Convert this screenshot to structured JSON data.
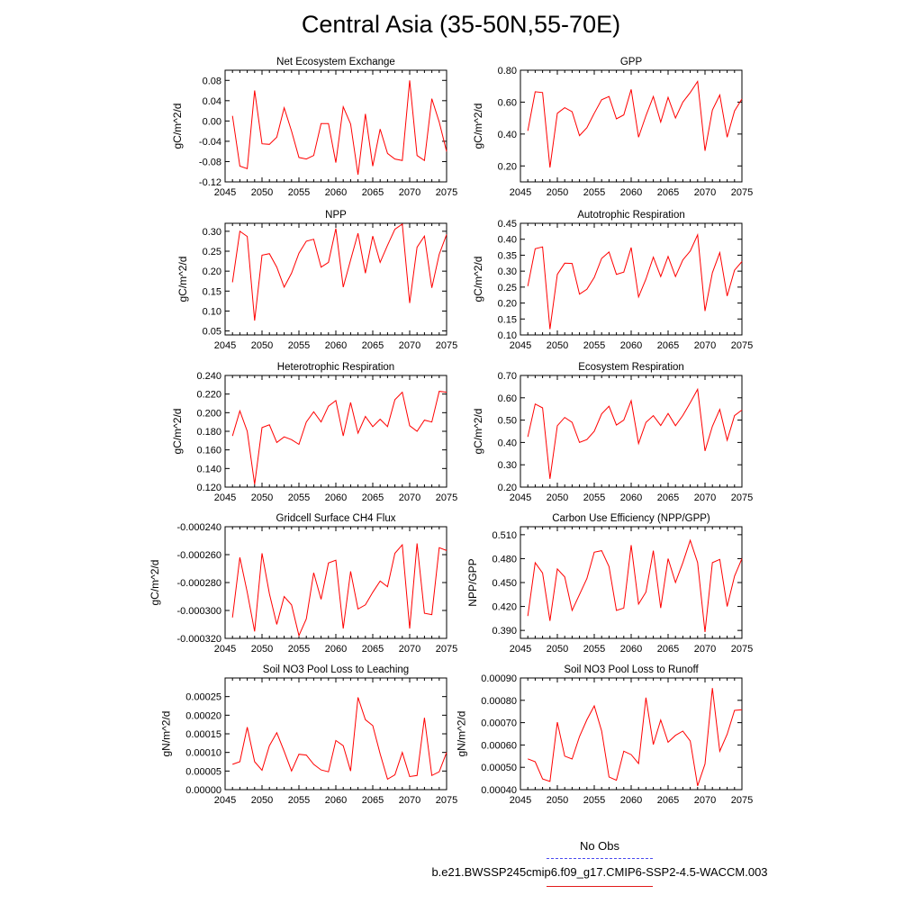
{
  "title": "Central Asia (35-50N,55-70E)",
  "series_color": "#ff0000",
  "obs_color": "#4a4af0",
  "legend": {
    "obs_label": "No Obs",
    "case_label": "b.e21.BWSSP245cmip6.f09_g17.CMIP6-SSP2-4.5-WACCM.003"
  },
  "chart_data": [
    {
      "type": "line",
      "title": "Net Ecosystem Exchange",
      "ylabel": "gC/m^2/d",
      "xlabel": "",
      "xlim": [
        2045,
        2075
      ],
      "ylim": [
        -0.12,
        0.1
      ],
      "xticks": [
        2045,
        2050,
        2055,
        2060,
        2065,
        2070,
        2075
      ],
      "xtick_labels": [
        "2045",
        "2050",
        "2055",
        "2060",
        "2065",
        "2070",
        "2075"
      ],
      "yticks": [
        -0.12,
        -0.08,
        -0.04,
        0.0,
        0.04,
        0.08
      ],
      "ytick_labels": [
        "-0.12",
        "-0.08",
        "-0.04",
        "0.00",
        "0.04",
        "0.08"
      ],
      "x": [
        2046,
        2047,
        2048,
        2049,
        2050,
        2051,
        2052,
        2053,
        2054,
        2055,
        2056,
        2057,
        2058,
        2059,
        2060,
        2061,
        2062,
        2063,
        2064,
        2065,
        2066,
        2067,
        2068,
        2069,
        2070,
        2071,
        2072,
        2073,
        2074,
        2075
      ],
      "series": [
        {
          "values": [
            0.01,
            -0.089,
            -0.094,
            0.06,
            -0.045,
            -0.046,
            -0.032,
            0.026,
            -0.02,
            -0.072,
            -0.075,
            -0.068,
            -0.005,
            -0.005,
            -0.082,
            0.028,
            -0.006,
            -0.106,
            0.014,
            -0.089,
            -0.016,
            -0.064,
            -0.075,
            -0.078,
            0.08,
            -0.068,
            -0.078,
            0.044,
            -0.002,
            -0.06
          ]
        }
      ]
    },
    {
      "type": "line",
      "title": "GPP",
      "ylabel": "gC/m^2/d",
      "xlabel": "",
      "xlim": [
        2045,
        2075
      ],
      "ylim": [
        0.1,
        0.8
      ],
      "xticks": [
        2045,
        2050,
        2055,
        2060,
        2065,
        2070,
        2075
      ],
      "xtick_labels": [
        "2045",
        "2050",
        "2055",
        "2060",
        "2065",
        "2070",
        "2075"
      ],
      "yticks": [
        0.2,
        0.4,
        0.6,
        0.8
      ],
      "ytick_labels": [
        "0.20",
        "0.40",
        "0.60",
        "0.80"
      ],
      "x": [
        2046,
        2047,
        2048,
        2049,
        2050,
        2051,
        2052,
        2053,
        2054,
        2055,
        2056,
        2057,
        2058,
        2059,
        2060,
        2061,
        2062,
        2063,
        2064,
        2065,
        2066,
        2067,
        2068,
        2069,
        2070,
        2071,
        2072,
        2073,
        2074,
        2075
      ],
      "series": [
        {
          "values": [
            0.42,
            0.665,
            0.66,
            0.19,
            0.53,
            0.565,
            0.54,
            0.39,
            0.44,
            0.53,
            0.615,
            0.635,
            0.495,
            0.52,
            0.68,
            0.38,
            0.515,
            0.635,
            0.475,
            0.63,
            0.5,
            0.6,
            0.66,
            0.73,
            0.295,
            0.55,
            0.645,
            0.38,
            0.545,
            0.62
          ]
        }
      ]
    },
    {
      "type": "line",
      "title": "NPP",
      "ylabel": "gC/m^2/d",
      "xlabel": "",
      "xlim": [
        2045,
        2075
      ],
      "ylim": [
        0.04,
        0.32
      ],
      "xticks": [
        2045,
        2050,
        2055,
        2060,
        2065,
        2070,
        2075
      ],
      "xtick_labels": [
        "2045",
        "2050",
        "2055",
        "2060",
        "2065",
        "2070",
        "2075"
      ],
      "yticks": [
        0.05,
        0.1,
        0.15,
        0.2,
        0.25,
        0.3
      ],
      "ytick_labels": [
        "0.05",
        "0.10",
        "0.15",
        "0.20",
        "0.25",
        "0.30"
      ],
      "x": [
        2046,
        2047,
        2048,
        2049,
        2050,
        2051,
        2052,
        2053,
        2054,
        2055,
        2056,
        2057,
        2058,
        2059,
        2060,
        2061,
        2062,
        2063,
        2064,
        2065,
        2066,
        2067,
        2068,
        2069,
        2070,
        2071,
        2072,
        2073,
        2074,
        2075
      ],
      "series": [
        {
          "values": [
            0.172,
            0.3,
            0.287,
            0.076,
            0.24,
            0.244,
            0.21,
            0.16,
            0.195,
            0.245,
            0.275,
            0.28,
            0.21,
            0.222,
            0.307,
            0.16,
            0.228,
            0.295,
            0.195,
            0.288,
            0.222,
            0.265,
            0.305,
            0.318,
            0.12,
            0.26,
            0.288,
            0.158,
            0.242,
            0.292
          ]
        }
      ]
    },
    {
      "type": "line",
      "title": "Autotrophic Respiration",
      "ylabel": "gC/m^2/d",
      "xlabel": "",
      "xlim": [
        2045,
        2075
      ],
      "ylim": [
        0.1,
        0.45
      ],
      "xticks": [
        2045,
        2050,
        2055,
        2060,
        2065,
        2070,
        2075
      ],
      "xtick_labels": [
        "2045",
        "2050",
        "2055",
        "2060",
        "2065",
        "2070",
        "2075"
      ],
      "yticks": [
        0.1,
        0.15,
        0.2,
        0.25,
        0.3,
        0.35,
        0.4,
        0.45
      ],
      "ytick_labels": [
        "0.10",
        "0.15",
        "0.20",
        "0.25",
        "0.30",
        "0.35",
        "0.40",
        "0.45"
      ],
      "x": [
        2046,
        2047,
        2048,
        2049,
        2050,
        2051,
        2052,
        2053,
        2054,
        2055,
        2056,
        2057,
        2058,
        2059,
        2060,
        2061,
        2062,
        2063,
        2064,
        2065,
        2066,
        2067,
        2068,
        2069,
        2070,
        2071,
        2072,
        2073,
        2074,
        2075
      ],
      "series": [
        {
          "values": [
            0.253,
            0.37,
            0.376,
            0.118,
            0.29,
            0.325,
            0.324,
            0.228,
            0.243,
            0.28,
            0.34,
            0.36,
            0.29,
            0.297,
            0.374,
            0.219,
            0.275,
            0.344,
            0.283,
            0.346,
            0.283,
            0.335,
            0.363,
            0.414,
            0.175,
            0.295,
            0.358,
            0.222,
            0.303,
            0.33
          ]
        }
      ]
    },
    {
      "type": "line",
      "title": "Heterotrophic Respiration",
      "ylabel": "gC/m^2/d",
      "xlabel": "",
      "xlim": [
        2045,
        2075
      ],
      "ylim": [
        0.12,
        0.24
      ],
      "xticks": [
        2045,
        2050,
        2055,
        2060,
        2065,
        2070,
        2075
      ],
      "xtick_labels": [
        "2045",
        "2050",
        "2055",
        "2060",
        "2065",
        "2070",
        "2075"
      ],
      "yticks": [
        0.12,
        0.14,
        0.16,
        0.18,
        0.2,
        0.22,
        0.24
      ],
      "ytick_labels": [
        "0.120",
        "0.140",
        "0.160",
        "0.180",
        "0.200",
        "0.220",
        "0.240"
      ],
      "x": [
        2046,
        2047,
        2048,
        2049,
        2050,
        2051,
        2052,
        2053,
        2054,
        2055,
        2056,
        2057,
        2058,
        2059,
        2060,
        2061,
        2062,
        2063,
        2064,
        2065,
        2066,
        2067,
        2068,
        2069,
        2070,
        2071,
        2072,
        2073,
        2074,
        2075
      ],
      "series": [
        {
          "values": [
            0.175,
            0.202,
            0.18,
            0.123,
            0.184,
            0.187,
            0.168,
            0.174,
            0.171,
            0.166,
            0.19,
            0.201,
            0.19,
            0.207,
            0.213,
            0.175,
            0.211,
            0.178,
            0.196,
            0.185,
            0.193,
            0.185,
            0.214,
            0.222,
            0.186,
            0.18,
            0.192,
            0.19,
            0.223,
            0.222
          ]
        }
      ]
    },
    {
      "type": "line",
      "title": "Ecosystem Respiration",
      "ylabel": "gC/m^2/d",
      "xlabel": "",
      "xlim": [
        2045,
        2075
      ],
      "ylim": [
        0.2,
        0.7
      ],
      "xticks": [
        2045,
        2050,
        2055,
        2060,
        2065,
        2070,
        2075
      ],
      "xtick_labels": [
        "2045",
        "2050",
        "2055",
        "2060",
        "2065",
        "2070",
        "2075"
      ],
      "yticks": [
        0.2,
        0.3,
        0.4,
        0.5,
        0.6,
        0.7
      ],
      "ytick_labels": [
        "0.20",
        "0.30",
        "0.40",
        "0.50",
        "0.60",
        "0.70"
      ],
      "x": [
        2046,
        2047,
        2048,
        2049,
        2050,
        2051,
        2052,
        2053,
        2054,
        2055,
        2056,
        2057,
        2058,
        2059,
        2060,
        2061,
        2062,
        2063,
        2064,
        2065,
        2066,
        2067,
        2068,
        2069,
        2070,
        2071,
        2072,
        2073,
        2074,
        2075
      ],
      "series": [
        {
          "values": [
            0.425,
            0.572,
            0.555,
            0.237,
            0.475,
            0.512,
            0.49,
            0.4,
            0.413,
            0.45,
            0.528,
            0.562,
            0.478,
            0.5,
            0.587,
            0.395,
            0.49,
            0.52,
            0.476,
            0.53,
            0.475,
            0.521,
            0.578,
            0.638,
            0.362,
            0.472,
            0.548,
            0.41,
            0.52,
            0.545
          ]
        }
      ]
    },
    {
      "type": "line",
      "title": "Gridcell Surface CH4 Flux",
      "ylabel": "gC/m^2/d",
      "xlabel": "",
      "xlim": [
        2045,
        2075
      ],
      "ylim": [
        -0.00032,
        -0.00024
      ],
      "xticks": [
        2045,
        2050,
        2055,
        2060,
        2065,
        2070,
        2075
      ],
      "xtick_labels": [
        "2045",
        "2050",
        "2055",
        "2060",
        "2065",
        "2070",
        "2075"
      ],
      "yticks": [
        -0.00032,
        -0.0003,
        -0.00028,
        -0.00026,
        -0.00024
      ],
      "ytick_labels": [
        "-0.000320",
        "-0.000300",
        "-0.000280",
        "-0.000260",
        "-0.000240"
      ],
      "x": [
        2046,
        2047,
        2048,
        2049,
        2050,
        2051,
        2052,
        2053,
        2054,
        2055,
        2056,
        2057,
        2058,
        2059,
        2060,
        2061,
        2062,
        2063,
        2064,
        2065,
        2066,
        2067,
        2068,
        2069,
        2070,
        2071,
        2072,
        2073,
        2074,
        2075
      ],
      "series": [
        {
          "values": [
            -0.000305,
            -0.000262,
            -0.000287,
            -0.000315,
            -0.000259,
            -0.000288,
            -0.00031,
            -0.00029,
            -0.000296,
            -0.000318,
            -0.000306,
            -0.000273,
            -0.000292,
            -0.000266,
            -0.000264,
            -0.000313,
            -0.000272,
            -0.000299,
            -0.000296,
            -0.000287,
            -0.000279,
            -0.000283,
            -0.000259,
            -0.000253,
            -0.000313,
            -0.000252,
            -0.000302,
            -0.000303,
            -0.000255,
            -0.000257
          ]
        }
      ]
    },
    {
      "type": "line",
      "title": "Carbon Use Efficiency (NPP/GPP)",
      "ylabel": "NPP/GPP",
      "xlabel": "",
      "xlim": [
        2045,
        2075
      ],
      "ylim": [
        0.38,
        0.52
      ],
      "xticks": [
        2045,
        2050,
        2055,
        2060,
        2065,
        2070,
        2075
      ],
      "xtick_labels": [
        "2045",
        "2050",
        "2055",
        "2060",
        "2065",
        "2070",
        "2075"
      ],
      "yticks": [
        0.39,
        0.42,
        0.45,
        0.48,
        0.51
      ],
      "ytick_labels": [
        "0.390",
        "0.420",
        "0.450",
        "0.480",
        "0.510"
      ],
      "x": [
        2046,
        2047,
        2048,
        2049,
        2050,
        2051,
        2052,
        2053,
        2054,
        2055,
        2056,
        2057,
        2058,
        2059,
        2060,
        2061,
        2062,
        2063,
        2064,
        2065,
        2066,
        2067,
        2068,
        2069,
        2070,
        2071,
        2072,
        2073,
        2074,
        2075
      ],
      "series": [
        {
          "values": [
            0.408,
            0.475,
            0.462,
            0.402,
            0.467,
            0.457,
            0.415,
            0.435,
            0.455,
            0.488,
            0.49,
            0.47,
            0.415,
            0.418,
            0.497,
            0.423,
            0.438,
            0.49,
            0.418,
            0.48,
            0.45,
            0.475,
            0.503,
            0.475,
            0.388,
            0.475,
            0.479,
            0.42,
            0.458,
            0.48
          ]
        }
      ]
    },
    {
      "type": "line",
      "title": "Soil NO3 Pool Loss to Leaching",
      "ylabel": "gN/m^2/d",
      "xlabel": "",
      "xlim": [
        2045,
        2075
      ],
      "ylim": [
        0.0,
        0.0003
      ],
      "xticks": [
        2045,
        2050,
        2055,
        2060,
        2065,
        2070,
        2075
      ],
      "xtick_labels": [
        "2045",
        "2050",
        "2055",
        "2060",
        "2065",
        "2070",
        "2075"
      ],
      "yticks": [
        0.0,
        5e-05,
        0.0001,
        0.00015,
        0.0002,
        0.00025
      ],
      "ytick_labels": [
        "0.00000",
        "0.00005",
        "0.00010",
        "0.00015",
        "0.00020",
        "0.00025"
      ],
      "x": [
        2046,
        2047,
        2048,
        2049,
        2050,
        2051,
        2052,
        2053,
        2054,
        2055,
        2056,
        2057,
        2058,
        2059,
        2060,
        2061,
        2062,
        2063,
        2064,
        2065,
        2066,
        2067,
        2068,
        2069,
        2070,
        2071,
        2072,
        2073,
        2074,
        2075
      ],
      "series": [
        {
          "values": [
            6.8e-05,
            7.5e-05,
            0.000168,
            7.5e-05,
            5.2e-05,
            0.000118,
            0.000153,
            0.000103,
            5e-05,
            9.5e-05,
            9.3e-05,
            6.8e-05,
            5.3e-05,
            4.8e-05,
            0.000132,
            0.000118,
            5e-05,
            0.000248,
            0.000188,
            0.000172,
            9.6e-05,
            2.8e-05,
            4e-05,
            0.0001,
            3.5e-05,
            3.8e-05,
            0.000193,
            3.8e-05,
            4.8e-05,
            0.0001
          ]
        }
      ]
    },
    {
      "type": "line",
      "title": "Soil NO3 Pool Loss to Runoff",
      "ylabel": "gN/m^2/d",
      "xlabel": "",
      "xlim": [
        2045,
        2075
      ],
      "ylim": [
        0.0004,
        0.0009
      ],
      "xticks": [
        2045,
        2050,
        2055,
        2060,
        2065,
        2070,
        2075
      ],
      "xtick_labels": [
        "2045",
        "2050",
        "2055",
        "2060",
        "2065",
        "2070",
        "2075"
      ],
      "yticks": [
        0.0004,
        0.0005,
        0.0006,
        0.0007,
        0.0008,
        0.0009
      ],
      "ytick_labels": [
        "0.00040",
        "0.00050",
        "0.00060",
        "0.00070",
        "0.00080",
        "0.00090"
      ],
      "x": [
        2046,
        2047,
        2048,
        2049,
        2050,
        2051,
        2052,
        2053,
        2054,
        2055,
        2056,
        2057,
        2058,
        2059,
        2060,
        2061,
        2062,
        2063,
        2064,
        2065,
        2066,
        2067,
        2068,
        2069,
        2070,
        2071,
        2072,
        2073,
        2074,
        2075
      ],
      "series": [
        {
          "values": [
            0.000538,
            0.000525,
            0.000448,
            0.000437,
            0.000702,
            0.00055,
            0.000537,
            0.000638,
            0.000713,
            0.000775,
            0.000663,
            0.000457,
            0.000442,
            0.000572,
            0.000557,
            0.000517,
            0.000812,
            0.000602,
            0.000712,
            0.000612,
            0.000643,
            0.000662,
            0.000618,
            0.000417,
            0.000515,
            0.000855,
            0.000572,
            0.000648,
            0.000755,
            0.000758
          ]
        }
      ]
    }
  ]
}
